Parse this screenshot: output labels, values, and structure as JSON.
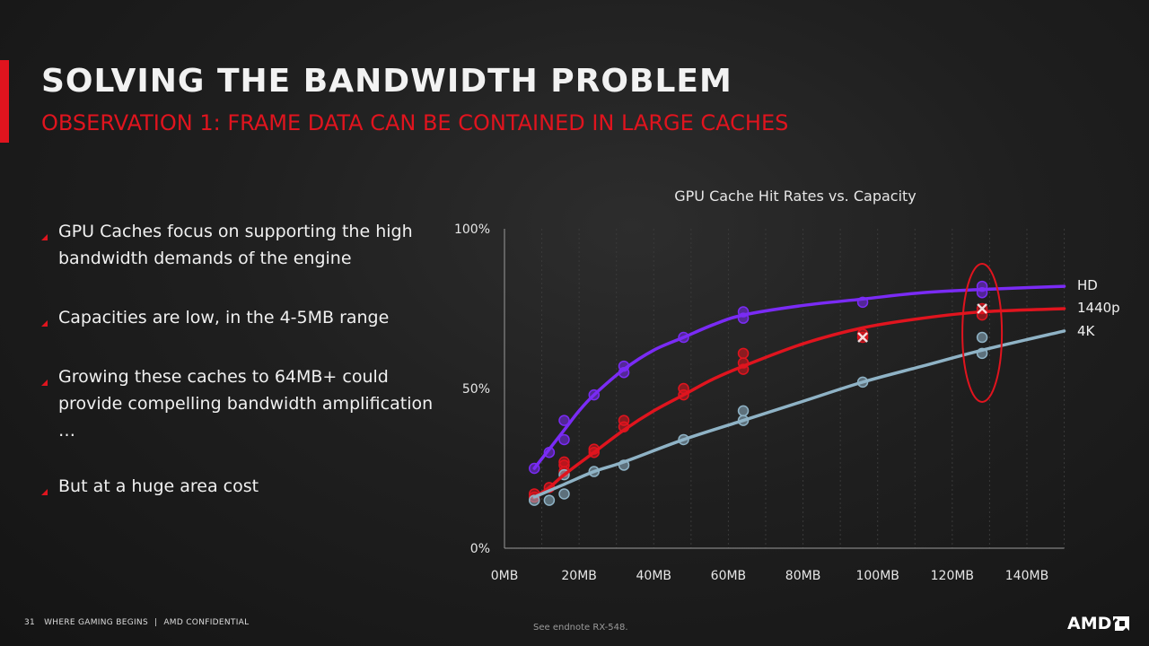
{
  "slide": {
    "title": "SOLVING THE BANDWIDTH PROBLEM",
    "subtitle": "OBSERVATION 1: FRAME DATA CAN BE CONTAINED IN LARGE CACHES",
    "accent_color": "#e0141e"
  },
  "bullets": [
    "GPU Caches focus on supporting the high bandwidth demands of the engine",
    "Capacities are low, in the 4-5MB range",
    "Growing these caches to 64MB+ could provide compelling bandwidth amplification …",
    "But at a huge area cost"
  ],
  "chart_data": {
    "type": "scatter",
    "title": "GPU Cache Hit Rates vs. Capacity",
    "xlabel": "",
    "ylabel": "",
    "x_ticks": [
      "0MB",
      "20MB",
      "40MB",
      "60MB",
      "80MB",
      "100MB",
      "120MB",
      "140MB"
    ],
    "y_ticks": [
      "0%",
      "50%",
      "100%"
    ],
    "xlim": [
      0,
      150
    ],
    "ylim": [
      0,
      100
    ],
    "grid": true,
    "legend_placement": "right, at line ends",
    "series": [
      {
        "name": "HD",
        "color": "#7a2bf5",
        "points": [
          [
            8,
            25
          ],
          [
            12,
            30
          ],
          [
            16,
            34
          ],
          [
            16,
            40
          ],
          [
            24,
            48
          ],
          [
            32,
            55
          ],
          [
            32,
            57
          ],
          [
            48,
            66
          ],
          [
            64,
            72
          ],
          [
            64,
            74
          ],
          [
            96,
            77
          ],
          [
            128,
            80
          ],
          [
            128,
            82
          ]
        ],
        "curve": [
          [
            8,
            25
          ],
          [
            12,
            31
          ],
          [
            16,
            37
          ],
          [
            20,
            43
          ],
          [
            24,
            48
          ],
          [
            32,
            56
          ],
          [
            40,
            62
          ],
          [
            48,
            66
          ],
          [
            56,
            70
          ],
          [
            64,
            73
          ],
          [
            80,
            76
          ],
          [
            96,
            78
          ],
          [
            112,
            80
          ],
          [
            128,
            81
          ],
          [
            150,
            82
          ]
        ]
      },
      {
        "name": "1440p",
        "color": "#e0141e",
        "points": [
          [
            8,
            16
          ],
          [
            8,
            17
          ],
          [
            12,
            19
          ],
          [
            16,
            24
          ],
          [
            16,
            26
          ],
          [
            16,
            27
          ],
          [
            24,
            31
          ],
          [
            24,
            30
          ],
          [
            32,
            38
          ],
          [
            32,
            40
          ],
          [
            48,
            48
          ],
          [
            48,
            50
          ],
          [
            64,
            56
          ],
          [
            64,
            58
          ],
          [
            64,
            61
          ],
          [
            96,
            66
          ],
          [
            96,
            67
          ],
          [
            128,
            73
          ],
          [
            128,
            75
          ]
        ],
        "curve": [
          [
            8,
            16
          ],
          [
            12,
            19
          ],
          [
            16,
            23
          ],
          [
            24,
            30
          ],
          [
            32,
            37
          ],
          [
            40,
            43
          ],
          [
            48,
            48
          ],
          [
            56,
            53
          ],
          [
            64,
            57
          ],
          [
            80,
            64
          ],
          [
            96,
            69
          ],
          [
            112,
            72
          ],
          [
            128,
            74
          ],
          [
            150,
            75
          ]
        ]
      },
      {
        "name": "4K",
        "color": "#8fb3c6",
        "points": [
          [
            8,
            15
          ],
          [
            12,
            15
          ],
          [
            16,
            17
          ],
          [
            16,
            23
          ],
          [
            24,
            24
          ],
          [
            32,
            26
          ],
          [
            48,
            34
          ],
          [
            64,
            40
          ],
          [
            64,
            43
          ],
          [
            96,
            52
          ],
          [
            128,
            61
          ],
          [
            128,
            66
          ]
        ],
        "curve": [
          [
            8,
            16
          ],
          [
            16,
            20
          ],
          [
            24,
            24
          ],
          [
            32,
            27
          ],
          [
            48,
            34
          ],
          [
            64,
            40
          ],
          [
            80,
            46
          ],
          [
            96,
            52
          ],
          [
            112,
            57
          ],
          [
            128,
            62
          ],
          [
            150,
            68
          ]
        ]
      }
    ],
    "annotations": {
      "cross_markers": [
        [
          96,
          66
        ],
        [
          128,
          75
        ]
      ],
      "highlight_ellipse_at_x": 128
    }
  },
  "footer": {
    "page_number": "31",
    "left_text": "WHERE GAMING BEGINS",
    "confidential": "AMD CONFIDENTIAL",
    "endnote": "See endnote RX-548.",
    "logo_text": "AMD"
  }
}
